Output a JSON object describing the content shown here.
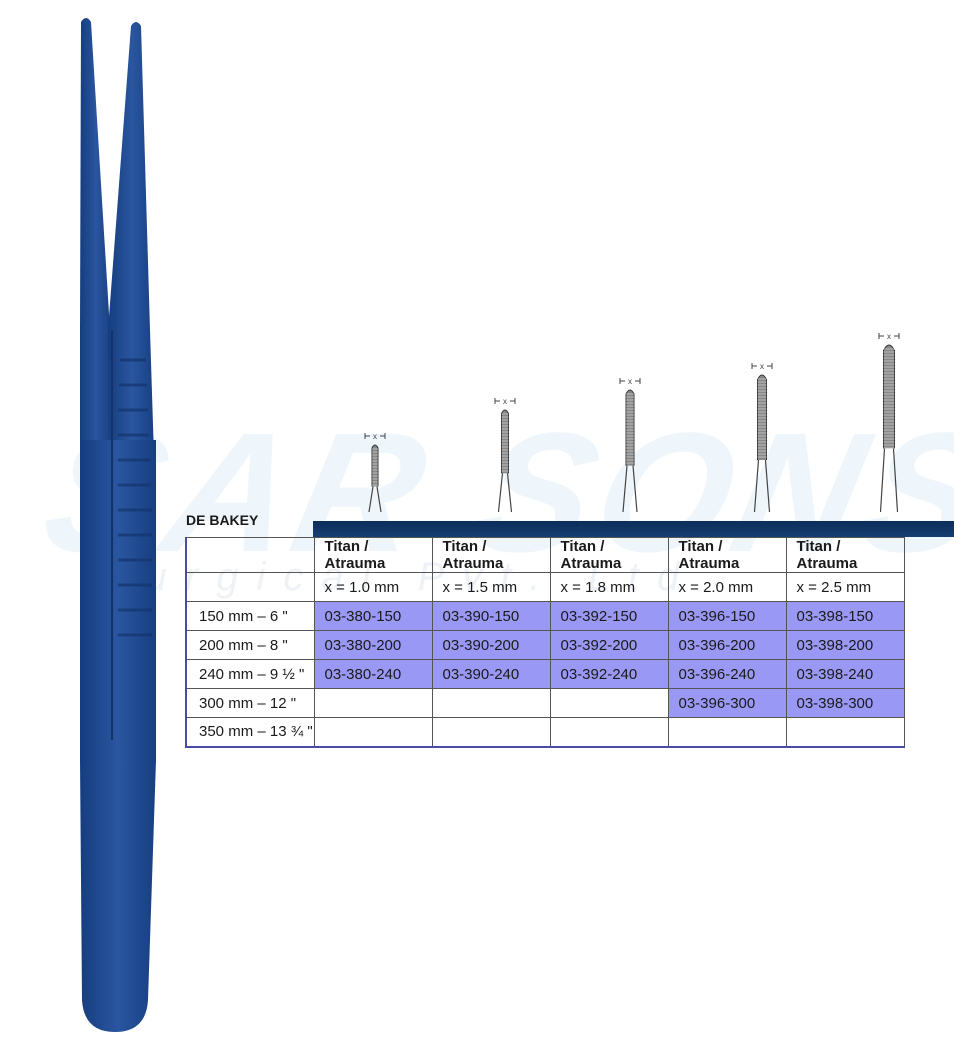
{
  "watermark": {
    "brand": "SAR SONS",
    "sub": "Surgical Pvt. Ltd"
  },
  "colors": {
    "instrument": "#1f4a8f",
    "header_bar": "#123766",
    "code_cell": "#9a98f5",
    "watermark": "#eef5fb"
  },
  "tip_label": "x",
  "product": {
    "title": "DE BAKEY"
  },
  "table": {
    "columns": [
      {
        "type": "Titan / Atrauma",
        "width": "x = 1.0 mm"
      },
      {
        "type": "Titan / Atrauma",
        "width": "x = 1.5 mm"
      },
      {
        "type": "Titan / Atrauma",
        "width": "x = 1.8 mm"
      },
      {
        "type": "Titan / Atrauma",
        "width": "x = 2.0 mm"
      },
      {
        "type": "Titan / Atrauma",
        "width": "x = 2.5 mm"
      }
    ],
    "rows": [
      {
        "size": "150 mm – 6 \"",
        "codes": [
          "03-380-150",
          "03-390-150",
          "03-392-150",
          "03-396-150",
          "03-398-150"
        ]
      },
      {
        "size": "200 mm – 8 \"",
        "codes": [
          "03-380-200",
          "03-390-200",
          "03-392-200",
          "03-396-200",
          "03-398-200"
        ]
      },
      {
        "size": "240 mm – 9 ½ \"",
        "codes": [
          "03-380-240",
          "03-390-240",
          "03-392-240",
          "03-396-240",
          "03-398-240"
        ]
      },
      {
        "size": "300 mm – 12 \"",
        "codes": [
          "",
          "",
          "",
          "03-396-300",
          "03-398-300"
        ]
      },
      {
        "size": "350 mm – 13 ¾ \"",
        "codes": [
          "",
          "",
          "",
          "",
          ""
        ]
      }
    ]
  }
}
